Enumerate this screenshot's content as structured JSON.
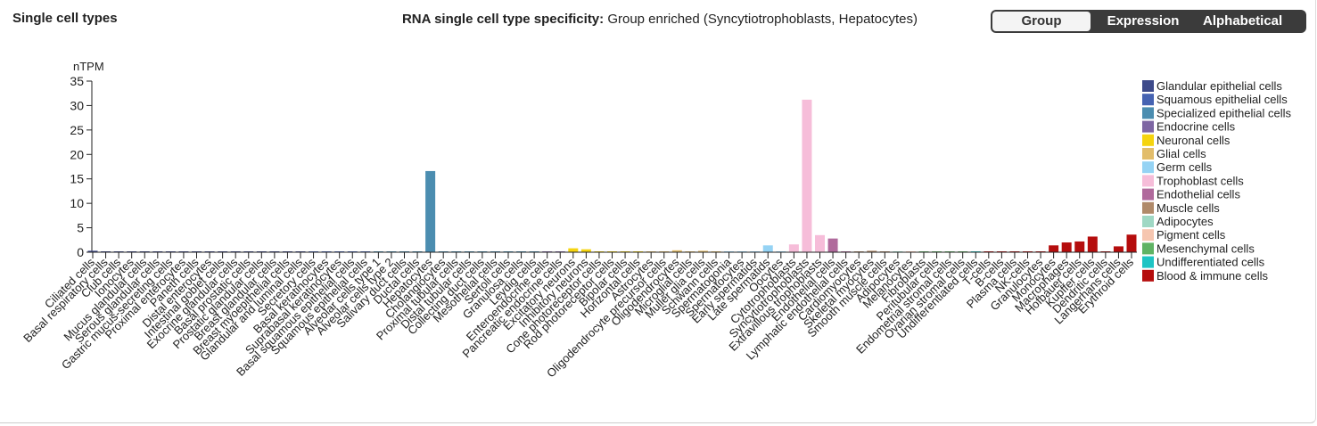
{
  "header": {
    "left_title": "Single cell types",
    "center_title_bold": "RNA single cell type specificity:",
    "center_title_rest": "Group enriched (Syncytiotrophoblasts, Hepatocytes)"
  },
  "toggle": {
    "options": [
      "Group",
      "Expression",
      "Alphabetical"
    ],
    "active": "Group"
  },
  "chart_data": {
    "type": "bar",
    "ylabel": "nTPM",
    "ylim": [
      0,
      35
    ],
    "yticks": [
      0,
      5,
      10,
      15,
      20,
      25,
      30,
      35
    ],
    "legend_position": "right",
    "groups": [
      {
        "name": "Glandular epithelial cells",
        "color": "#3d4a8a"
      },
      {
        "name": "Squamous epithelial cells",
        "color": "#4663b2"
      },
      {
        "name": "Specialized epithelial cells",
        "color": "#4b8db0"
      },
      {
        "name": "Endocrine cells",
        "color": "#7e66a3"
      },
      {
        "name": "Neuronal cells",
        "color": "#f5d40f"
      },
      {
        "name": "Glial cells",
        "color": "#e2bd6b"
      },
      {
        "name": "Germ cells",
        "color": "#95d3f4"
      },
      {
        "name": "Trophoblast cells",
        "color": "#f6bdd9"
      },
      {
        "name": "Endothelial cells",
        "color": "#b06a9c"
      },
      {
        "name": "Muscle cells",
        "color": "#b08a6a"
      },
      {
        "name": "Adipocytes",
        "color": "#9fd8c4"
      },
      {
        "name": "Pigment cells",
        "color": "#f6c6b0"
      },
      {
        "name": "Mesenchymal cells",
        "color": "#5fb364"
      },
      {
        "name": "Undifferentiated cells",
        "color": "#1ec4c4"
      },
      {
        "name": "Blood & immune cells",
        "color": "#b50d0d"
      }
    ],
    "categories": [
      {
        "label": "Ciliated cells",
        "group": 0,
        "value": 0.3
      },
      {
        "label": "Basal respiratory cells",
        "group": 0,
        "value": 0.1
      },
      {
        "label": "Club cells",
        "group": 0,
        "value": 0.1
      },
      {
        "label": "Ionocytes",
        "group": 0,
        "value": 0.1
      },
      {
        "label": "Mucus glandular cells",
        "group": 0,
        "value": 0.1
      },
      {
        "label": "Serous glandular cells",
        "group": 0,
        "value": 0.1
      },
      {
        "label": "Gastric mucus-secreting cells",
        "group": 0,
        "value": 0.1
      },
      {
        "label": "Proximal enterocytes",
        "group": 0,
        "value": 0.1
      },
      {
        "label": "Paneth cells",
        "group": 0,
        "value": 0.1
      },
      {
        "label": "Distal enterocytes",
        "group": 0,
        "value": 0.1
      },
      {
        "label": "Intestinal goblet cells",
        "group": 0,
        "value": 0.1
      },
      {
        "label": "Exocrine glandular cells",
        "group": 0,
        "value": 0.1
      },
      {
        "label": "Basal prostatic cells",
        "group": 0,
        "value": 0.1
      },
      {
        "label": "Prostatic glandular cells",
        "group": 0,
        "value": 0.1
      },
      {
        "label": "Breast glandular cells",
        "group": 0,
        "value": 0.1
      },
      {
        "label": "Breast myoepithelial cells",
        "group": 0,
        "value": 0.1
      },
      {
        "label": "Glandular and luminal cells",
        "group": 0,
        "value": 0.1
      },
      {
        "label": "Secretory cells",
        "group": 1,
        "value": 0.1
      },
      {
        "label": "Basal keratinocytes",
        "group": 1,
        "value": 0.1
      },
      {
        "label": "Suprabasal keratinocytes",
        "group": 1,
        "value": 0.1
      },
      {
        "label": "Basal squamous epithelial cells",
        "group": 1,
        "value": 0.1
      },
      {
        "label": "Squamous epithelial cells",
        "group": 1,
        "value": 0.1
      },
      {
        "label": "Alveolar cells type 1",
        "group": 2,
        "value": 0.1
      },
      {
        "label": "Alveolar cells type 2",
        "group": 2,
        "value": 0.1
      },
      {
        "label": "Salivary duct cells",
        "group": 2,
        "value": 0.1
      },
      {
        "label": "Ductal cells",
        "group": 2,
        "value": 0.1
      },
      {
        "label": "Hepatocytes",
        "group": 2,
        "value": 16.6
      },
      {
        "label": "Cholangiocytes",
        "group": 2,
        "value": 0.1
      },
      {
        "label": "Proximal tubular cells",
        "group": 2,
        "value": 0.1
      },
      {
        "label": "Distal tubular cells",
        "group": 2,
        "value": 0.1
      },
      {
        "label": "Collecting duct cells",
        "group": 2,
        "value": 0.1
      },
      {
        "label": "Mesothelial cells",
        "group": 2,
        "value": 0.1
      },
      {
        "label": "Sertoli cells",
        "group": 2,
        "value": 0.1
      },
      {
        "label": "Granulosa cells",
        "group": 2,
        "value": 0.1
      },
      {
        "label": "Leydig cells",
        "group": 2,
        "value": 0.1
      },
      {
        "label": "Enteroendocrine cells",
        "group": 3,
        "value": 0.1
      },
      {
        "label": "Pancreatic endocrine cells",
        "group": 3,
        "value": 0.1
      },
      {
        "label": "Excitatory neurons",
        "group": 4,
        "value": 0.8
      },
      {
        "label": "Inhibitory neurons",
        "group": 4,
        "value": 0.6
      },
      {
        "label": "Cone photoreceptor cells",
        "group": 4,
        "value": 0.1
      },
      {
        "label": "Rod photoreceptor cells",
        "group": 4,
        "value": 0.1
      },
      {
        "label": "Bipolar cells",
        "group": 4,
        "value": 0.1
      },
      {
        "label": "Horizontal cells",
        "group": 4,
        "value": 0.1
      },
      {
        "label": "Astrocytes",
        "group": 5,
        "value": 0.1
      },
      {
        "label": "Oligodendrocyte precursor cells",
        "group": 5,
        "value": 0.1
      },
      {
        "label": "Oligodendrocytes",
        "group": 5,
        "value": 0.4
      },
      {
        "label": "Microglial cells",
        "group": 5,
        "value": 0.1
      },
      {
        "label": "Muller glia cells",
        "group": 5,
        "value": 0.3
      },
      {
        "label": "Schwann cells",
        "group": 5,
        "value": 0.1
      },
      {
        "label": "Spermatogonia",
        "group": 6,
        "value": 0.1
      },
      {
        "label": "Spermatocytes",
        "group": 6,
        "value": 0.1
      },
      {
        "label": "Early spermatids",
        "group": 6,
        "value": 0.1
      },
      {
        "label": "Late spermatids",
        "group": 6,
        "value": 1.4
      },
      {
        "label": "Oocytes",
        "group": 6,
        "value": 0.1
      },
      {
        "label": "Cytotrophoblasts",
        "group": 7,
        "value": 1.6
      },
      {
        "label": "Syncytiotrophoblasts",
        "group": 7,
        "value": 31.2
      },
      {
        "label": "Extravillous trophoblasts",
        "group": 7,
        "value": 3.5
      },
      {
        "label": "Endothelial cells",
        "group": 8,
        "value": 2.8
      },
      {
        "label": "Lymphatic endothelial cells",
        "group": 8,
        "value": 0.1
      },
      {
        "label": "Cardiomyocytes",
        "group": 9,
        "value": 0.1
      },
      {
        "label": "Skeletal myocytes",
        "group": 9,
        "value": 0.3
      },
      {
        "label": "Smooth muscle cells",
        "group": 9,
        "value": 0.1
      },
      {
        "label": "Adipocytes",
        "group": 10,
        "value": 0.1
      },
      {
        "label": "Melanocytes",
        "group": 11,
        "value": 0.1
      },
      {
        "label": "Fibroblasts",
        "group": 12,
        "value": 0.1
      },
      {
        "label": "Peritubular cells",
        "group": 12,
        "value": 0.1
      },
      {
        "label": "Endometrial stromal cells",
        "group": 12,
        "value": 0.1
      },
      {
        "label": "Ovarian stromal cells",
        "group": 12,
        "value": 0.1
      },
      {
        "label": "Undifferentiated cells",
        "group": 13,
        "value": 0.1
      },
      {
        "label": "T-cells",
        "group": 14,
        "value": 0.1
      },
      {
        "label": "B-cells",
        "group": 14,
        "value": 0.1
      },
      {
        "label": "Plasma cells",
        "group": 14,
        "value": 0.1
      },
      {
        "label": "NK-cells",
        "group": 14,
        "value": 0.1
      },
      {
        "label": "Granulocytes",
        "group": 14,
        "value": 0.1
      },
      {
        "label": "Monocytes",
        "group": 14,
        "value": 1.4
      },
      {
        "label": "Macrophages",
        "group": 14,
        "value": 2.0
      },
      {
        "label": "Hofbauer cells",
        "group": 14,
        "value": 2.2
      },
      {
        "label": "Kupffer cells",
        "group": 14,
        "value": 3.2
      },
      {
        "label": "Dendritic cells",
        "group": 14,
        "value": 0.1
      },
      {
        "label": "Langerhans cells",
        "group": 14,
        "value": 1.2
      },
      {
        "label": "Erythroid cells",
        "group": 14,
        "value": 3.6
      }
    ]
  }
}
